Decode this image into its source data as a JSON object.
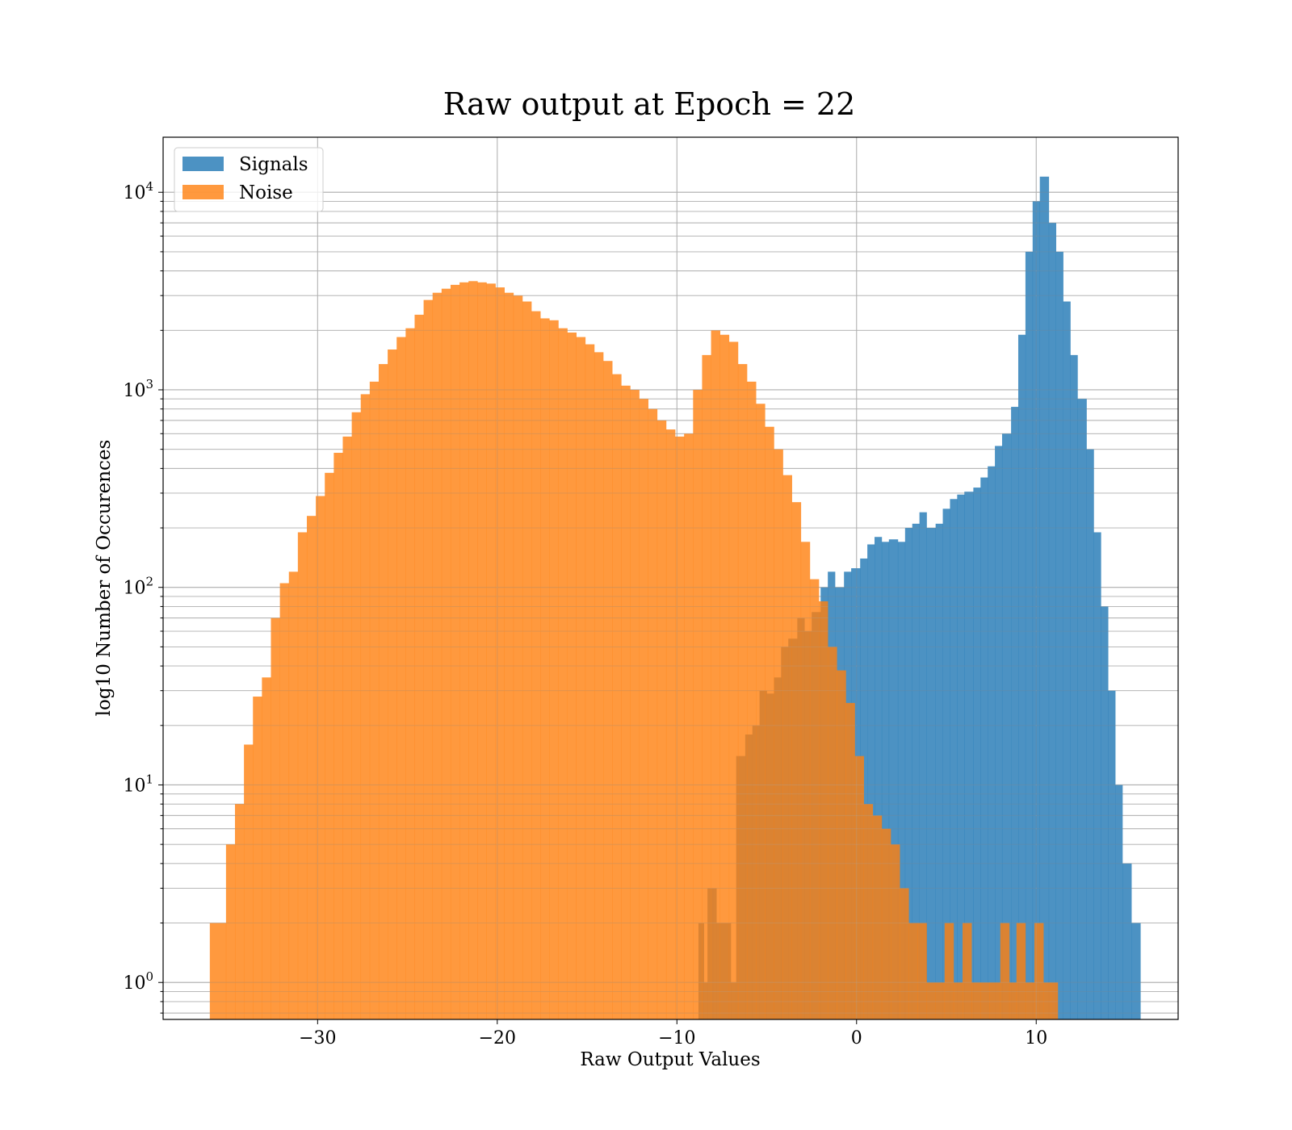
{
  "chart_data": {
    "type": "bar",
    "title": "Raw output at Epoch = 22",
    "xlabel": "Raw Output Values",
    "ylabel": "log10 Number of Occurences",
    "xlim": [
      -38.6,
      17.9
    ],
    "ylim": [
      0.65,
      19000
    ],
    "yscale": "log",
    "grid": true,
    "legend_position": "top-left",
    "x_ticks": [
      {
        "value": -30,
        "label": "−30"
      },
      {
        "value": -20,
        "label": "−20"
      },
      {
        "value": -10,
        "label": "−10"
      },
      {
        "value": 0,
        "label": "0"
      },
      {
        "value": 10,
        "label": "10"
      }
    ],
    "y_ticks": [
      {
        "value": 1,
        "base": "10",
        "exp": "0"
      },
      {
        "value": 10,
        "base": "10",
        "exp": "1"
      },
      {
        "value": 100,
        "base": "10",
        "exp": "2"
      },
      {
        "value": 1000,
        "base": "10",
        "exp": "3"
      },
      {
        "value": 10000,
        "base": "10",
        "exp": "4"
      }
    ],
    "series": [
      {
        "name": "Signals",
        "color": "#1f77b4",
        "opacity": 0.8,
        "bins": [
          [
            -8.8,
            2
          ],
          [
            -8.5,
            1
          ],
          [
            -8.3,
            3
          ],
          [
            -8.0,
            3
          ],
          [
            -7.8,
            2
          ],
          [
            -7.0,
            1
          ],
          [
            -6.7,
            14
          ],
          [
            -6.2,
            18
          ],
          [
            -5.8,
            20
          ],
          [
            -5.4,
            30
          ],
          [
            -5.0,
            29
          ],
          [
            -4.6,
            35
          ],
          [
            -4.2,
            50
          ],
          [
            -3.8,
            55
          ],
          [
            -3.3,
            70
          ],
          [
            -2.9,
            60
          ],
          [
            -2.5,
            75
          ],
          [
            -2.0,
            100
          ],
          [
            -1.6,
            120
          ],
          [
            -1.2,
            100
          ],
          [
            -0.7,
            120
          ],
          [
            -0.3,
            125
          ],
          [
            0.2,
            140
          ],
          [
            0.6,
            165
          ],
          [
            1.0,
            180
          ],
          [
            1.4,
            170
          ],
          [
            1.8,
            175
          ],
          [
            2.3,
            170
          ],
          [
            2.7,
            200
          ],
          [
            3.1,
            210
          ],
          [
            3.5,
            240
          ],
          [
            3.9,
            200
          ],
          [
            4.4,
            210
          ],
          [
            4.8,
            250
          ],
          [
            5.2,
            280
          ],
          [
            5.6,
            295
          ],
          [
            6.0,
            305
          ],
          [
            6.5,
            320
          ],
          [
            6.9,
            360
          ],
          [
            7.3,
            410
          ],
          [
            7.7,
            520
          ],
          [
            8.1,
            600
          ],
          [
            8.6,
            820
          ],
          [
            9.0,
            1900
          ],
          [
            9.4,
            5000
          ],
          [
            9.8,
            9000
          ],
          [
            10.2,
            12000
          ],
          [
            10.7,
            7000
          ],
          [
            11.1,
            5000
          ],
          [
            11.5,
            2800
          ],
          [
            11.9,
            1500
          ],
          [
            12.3,
            900
          ],
          [
            12.8,
            500
          ],
          [
            13.2,
            190
          ],
          [
            13.6,
            80
          ],
          [
            14.0,
            30
          ],
          [
            14.4,
            10
          ],
          [
            14.8,
            4
          ],
          [
            15.3,
            2
          ]
        ]
      },
      {
        "name": "Noise",
        "color": "#ff7f0e",
        "opacity": 0.8,
        "bins": [
          [
            -36.0,
            2
          ],
          [
            -35.1,
            5
          ],
          [
            -34.6,
            8
          ],
          [
            -34.1,
            16
          ],
          [
            -33.6,
            28
          ],
          [
            -33.1,
            35
          ],
          [
            -32.6,
            70
          ],
          [
            -32.1,
            105
          ],
          [
            -31.6,
            120
          ],
          [
            -31.1,
            190
          ],
          [
            -30.6,
            230
          ],
          [
            -30.1,
            290
          ],
          [
            -29.6,
            380
          ],
          [
            -29.1,
            480
          ],
          [
            -28.6,
            580
          ],
          [
            -28.1,
            770
          ],
          [
            -27.6,
            950
          ],
          [
            -27.1,
            1100
          ],
          [
            -26.6,
            1350
          ],
          [
            -26.1,
            1600
          ],
          [
            -25.6,
            1850
          ],
          [
            -25.1,
            2050
          ],
          [
            -24.6,
            2400
          ],
          [
            -24.1,
            2850
          ],
          [
            -23.6,
            3100
          ],
          [
            -23.1,
            3250
          ],
          [
            -22.6,
            3400
          ],
          [
            -22.1,
            3500
          ],
          [
            -21.6,
            3550
          ],
          [
            -21.1,
            3500
          ],
          [
            -20.6,
            3450
          ],
          [
            -20.1,
            3300
          ],
          [
            -19.6,
            3100
          ],
          [
            -19.1,
            3000
          ],
          [
            -18.6,
            2800
          ],
          [
            -18.1,
            2500
          ],
          [
            -17.6,
            2300
          ],
          [
            -17.1,
            2250
          ],
          [
            -16.6,
            2050
          ],
          [
            -16.1,
            1950
          ],
          [
            -15.6,
            1850
          ],
          [
            -15.1,
            1700
          ],
          [
            -14.6,
            1550
          ],
          [
            -14.1,
            1400
          ],
          [
            -13.6,
            1200
          ],
          [
            -13.1,
            1050
          ],
          [
            -12.6,
            1000
          ],
          [
            -12.1,
            900
          ],
          [
            -11.6,
            800
          ],
          [
            -11.1,
            700
          ],
          [
            -10.6,
            630
          ],
          [
            -10.1,
            580
          ],
          [
            -9.6,
            600
          ],
          [
            -9.1,
            1000
          ],
          [
            -8.6,
            1500
          ],
          [
            -8.1,
            2000
          ],
          [
            -7.6,
            1900
          ],
          [
            -7.1,
            1750
          ],
          [
            -6.6,
            1350
          ],
          [
            -6.1,
            1100
          ],
          [
            -5.6,
            850
          ],
          [
            -5.1,
            650
          ],
          [
            -4.6,
            500
          ],
          [
            -4.1,
            370
          ],
          [
            -3.6,
            270
          ],
          [
            -3.1,
            170
          ],
          [
            -2.6,
            110
          ],
          [
            -2.1,
            85
          ],
          [
            -1.6,
            50
          ],
          [
            -1.1,
            38
          ],
          [
            -0.6,
            26
          ],
          [
            -0.1,
            14
          ],
          [
            0.4,
            8
          ],
          [
            0.9,
            7
          ],
          [
            1.4,
            6
          ],
          [
            1.9,
            5
          ],
          [
            2.4,
            3
          ],
          [
            2.9,
            2
          ],
          [
            3.4,
            2
          ],
          [
            3.9,
            1
          ],
          [
            4.4,
            1
          ],
          [
            4.9,
            2
          ],
          [
            5.4,
            1
          ],
          [
            5.9,
            2
          ],
          [
            6.4,
            1
          ],
          [
            6.9,
            1
          ],
          [
            7.4,
            1
          ],
          [
            8.0,
            2
          ],
          [
            8.5,
            1
          ],
          [
            8.9,
            2
          ],
          [
            9.4,
            1
          ],
          [
            9.9,
            2
          ],
          [
            10.4,
            1
          ],
          [
            10.8,
            1
          ]
        ]
      }
    ]
  }
}
